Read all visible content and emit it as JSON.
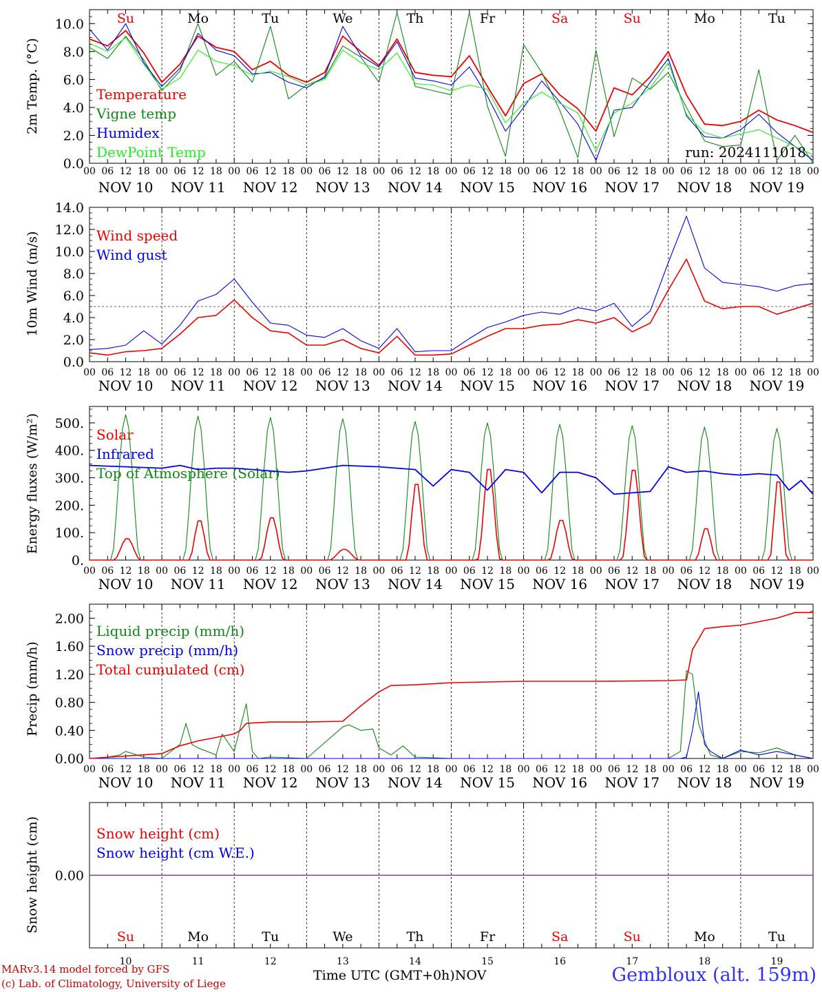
{
  "colors": {
    "red": "#ee0000",
    "green": "#118811",
    "blue": "#0000ee",
    "lightgreen": "#22ee22",
    "purple": "#7a3aa0",
    "station": "#3333ee"
  },
  "days": {
    "weekday_top": [
      "Su",
      "Mo",
      "Tu",
      "We",
      "Th",
      "Fr",
      "Sa",
      "Su",
      "Mo",
      "Tu"
    ],
    "weekday_red": [
      true,
      false,
      false,
      false,
      false,
      false,
      true,
      true,
      false,
      false
    ],
    "date_labels": [
      "NOV 10",
      "NOV 11",
      "NOV 12",
      "NOV 13",
      "NOV 14",
      "NOV 15",
      "NOV 16",
      "NOV 17",
      "NOV 18",
      "NOV 19"
    ],
    "day_numbers": [
      "10",
      "11",
      "12",
      "13",
      "14",
      "15",
      "16",
      "17",
      "18",
      "19"
    ],
    "hour_ticks": [
      "00",
      "06",
      "12",
      "18"
    ],
    "end_tick": "00"
  },
  "footer": {
    "credit_1": "MARv3.14 model forced by GFS",
    "credit_2": "(c) Lab. of Climatology, University of Liege",
    "x_caption": "Time UTC (GMT+0h)",
    "month": "NOV",
    "station": "Gembloux (alt. 159m)"
  },
  "chart_data": [
    {
      "type": "line",
      "ylabel": "2m Temp. (°C)",
      "ylim": [
        0,
        11
      ],
      "yticks": [
        "0.0",
        "2.0",
        "4.0",
        "6.0",
        "8.0",
        "10.0"
      ],
      "annotation": "run: 2024111018",
      "legend": [
        "Temperature",
        "Vigne temp",
        "Humidex",
        "DewPoint Temp"
      ],
      "x_hours": [
        0,
        6,
        12,
        18,
        24,
        30,
        36,
        42,
        48,
        54,
        60,
        66,
        72,
        78,
        84,
        90,
        96,
        102,
        108,
        114,
        120,
        126,
        132,
        138,
        144,
        150,
        156,
        162,
        168,
        174,
        180,
        186,
        192,
        198,
        204,
        210,
        216,
        222,
        228,
        234,
        240
      ],
      "series": [
        {
          "name": "Temperature",
          "color": "red",
          "values": [
            8.9,
            8.4,
            9.5,
            7.9,
            5.8,
            7.1,
            9.1,
            8.3,
            8.0,
            6.7,
            7.3,
            6.3,
            5.8,
            6.5,
            9.1,
            8.0,
            7.0,
            8.9,
            6.5,
            6.3,
            6.2,
            7.7,
            5.5,
            3.4,
            5.7,
            6.4,
            4.9,
            3.9,
            2.3,
            5.4,
            4.9,
            6.2,
            8.0,
            4.9,
            2.8,
            2.7,
            3.0,
            3.8,
            3.1,
            2.7,
            2.2
          ]
        },
        {
          "name": "Vigne temp",
          "color": "green",
          "values": [
            8.3,
            7.5,
            9.1,
            7.4,
            5.2,
            6.6,
            10.0,
            6.3,
            7.3,
            5.8,
            9.8,
            4.6,
            5.6,
            6.1,
            8.4,
            7.6,
            5.8,
            10.8,
            5.5,
            5.2,
            4.9,
            10.8,
            4.1,
            0.5,
            8.5,
            6.5,
            3.8,
            0.4,
            8.1,
            1.9,
            6.1,
            5.3,
            6.5,
            4.0,
            1.6,
            1.2,
            1.3,
            6.7,
            0.2,
            2.0,
            0.0
          ]
        },
        {
          "name": "Humidex",
          "color": "blue",
          "values": [
            9.6,
            8.1,
            10.0,
            7.2,
            5.5,
            6.8,
            9.3,
            8.1,
            7.7,
            6.4,
            6.5,
            5.8,
            5.4,
            6.2,
            9.8,
            7.7,
            6.9,
            8.7,
            6.1,
            5.9,
            5.6,
            6.9,
            4.8,
            2.3,
            4.0,
            5.9,
            4.4,
            2.8,
            0.2,
            3.8,
            4.0,
            5.8,
            7.5,
            3.4,
            1.9,
            1.8,
            2.4,
            3.5,
            2.2,
            1.2,
            0.2
          ]
        },
        {
          "name": "DewPoint Temp",
          "color": "lightgreen",
          "values": [
            8.6,
            8.0,
            9.0,
            7.1,
            5.3,
            6.1,
            8.1,
            7.3,
            7.0,
            6.3,
            6.6,
            6.2,
            5.6,
            6.0,
            8.1,
            7.2,
            6.7,
            7.9,
            5.7,
            5.6,
            5.2,
            5.6,
            5.3,
            2.9,
            4.3,
            5.1,
            4.3,
            3.6,
            0.9,
            3.6,
            4.3,
            5.4,
            7.2,
            3.5,
            2.2,
            1.8,
            2.1,
            2.4,
            1.8,
            1.2,
            0.6
          ]
        }
      ]
    },
    {
      "type": "line",
      "ylabel": "10m Wind (m/s)",
      "ylim": [
        0,
        14
      ],
      "yticks": [
        "0.0",
        "2.0",
        "4.0",
        "6.0",
        "8.0",
        "10.0",
        "12.0",
        "14.0"
      ],
      "reference_line": 5.0,
      "legend": [
        "Wind speed",
        "Wind gust"
      ],
      "x_hours": [
        0,
        6,
        12,
        18,
        24,
        30,
        36,
        42,
        48,
        54,
        60,
        66,
        72,
        78,
        84,
        90,
        96,
        102,
        108,
        114,
        120,
        126,
        132,
        138,
        144,
        150,
        156,
        162,
        168,
        174,
        180,
        186,
        192,
        198,
        204,
        210,
        216,
        222,
        228,
        234,
        240
      ],
      "series": [
        {
          "name": "Wind speed",
          "color": "red",
          "values": [
            0.8,
            0.6,
            0.9,
            1.0,
            1.2,
            2.5,
            4.0,
            4.2,
            5.6,
            4.0,
            2.8,
            2.6,
            1.5,
            1.5,
            2.0,
            1.2,
            0.8,
            2.3,
            0.6,
            0.6,
            0.7,
            1.5,
            2.3,
            3.0,
            3.0,
            3.3,
            3.4,
            3.8,
            3.5,
            4.0,
            2.7,
            3.5,
            6.5,
            9.3,
            5.5,
            4.8,
            5.0,
            5.0,
            4.3,
            4.8,
            5.3
          ]
        },
        {
          "name": "Wind gust",
          "color": "blue",
          "values": [
            1.1,
            1.2,
            1.5,
            2.8,
            1.6,
            3.3,
            5.5,
            6.1,
            7.5,
            5.4,
            3.5,
            3.3,
            2.4,
            2.2,
            3.0,
            1.9,
            1.2,
            3.0,
            0.9,
            1.0,
            1.0,
            2.1,
            3.1,
            3.6,
            4.2,
            4.5,
            4.3,
            4.9,
            4.6,
            5.3,
            3.2,
            4.6,
            9.0,
            13.2,
            8.5,
            7.2,
            7.0,
            6.8,
            6.4,
            6.9,
            7.1
          ]
        }
      ]
    },
    {
      "type": "line",
      "ylabel": "Energy fluxes (W/m²)",
      "ylim": [
        0,
        560
      ],
      "yticks": [
        "0.",
        "100.",
        "200.",
        "300.",
        "400.",
        "500."
      ],
      "legend": [
        "Solar",
        "Infrared",
        "Top of Atmosphere (Solar)"
      ],
      "solar_peaks": [
        {
          "day": 0,
          "peak": 80,
          "width": 4.5
        },
        {
          "day": 1,
          "peak": 150,
          "width": 3.5
        },
        {
          "day": 2,
          "peak": 160,
          "width": 4.0
        },
        {
          "day": 3,
          "peak": 40,
          "width": 5.0
        },
        {
          "day": 4,
          "peak": 290,
          "width": 3.5
        },
        {
          "day": 5,
          "peak": 345,
          "width": 3.8
        },
        {
          "day": 6,
          "peak": 150,
          "width": 4.0
        },
        {
          "day": 7,
          "peak": 340,
          "width": 4.0
        },
        {
          "day": 8,
          "peak": 120,
          "width": 3.5
        },
        {
          "day": 9,
          "peak": 305,
          "width": 3.0
        }
      ],
      "toa_peaks": [
        530,
        525,
        520,
        515,
        505,
        500,
        495,
        490,
        485,
        480
      ],
      "series": [
        {
          "name": "Infrared",
          "color": "blue",
          "x_hours": [
            0,
            12,
            24,
            30,
            36,
            42,
            48,
            54,
            60,
            66,
            72,
            84,
            96,
            102,
            108,
            114,
            120,
            126,
            132,
            138,
            144,
            150,
            156,
            162,
            168,
            174,
            180,
            186,
            192,
            198,
            204,
            210,
            216,
            222,
            228,
            232,
            236,
            240
          ],
          "values": [
            345,
            340,
            335,
            345,
            330,
            335,
            335,
            330,
            325,
            320,
            325,
            345,
            340,
            335,
            330,
            270,
            330,
            320,
            255,
            330,
            320,
            245,
            320,
            320,
            300,
            240,
            245,
            250,
            340,
            320,
            325,
            315,
            310,
            315,
            310,
            255,
            290,
            240
          ]
        }
      ]
    },
    {
      "type": "line",
      "ylabel": "Precip (mm/h)",
      "ylim": [
        0,
        2.2
      ],
      "yticks": [
        "0.00",
        "0.40",
        "0.80",
        "1.20",
        "1.60",
        "2.00"
      ],
      "legend": [
        "Liquid precip (mm/h)",
        "Snow precip (mm/h)",
        "Total cumulated (cm)"
      ],
      "series": [
        {
          "name": "Liquid precip (mm/h)",
          "color": "green",
          "x_hours": [
            0,
            6,
            10,
            12,
            18,
            24,
            30,
            32,
            34,
            36,
            42,
            44,
            48,
            52,
            54,
            56,
            60,
            72,
            84,
            86,
            90,
            94,
            96,
            100,
            104,
            108,
            120,
            192,
            196,
            198,
            200,
            202,
            204,
            206,
            210,
            216,
            222,
            228,
            234,
            240
          ],
          "values": [
            0,
            0.02,
            0.05,
            0.1,
            0.02,
            0,
            0.2,
            0.5,
            0.2,
            0.15,
            0.05,
            0.35,
            0.1,
            0.78,
            0.1,
            0,
            0.02,
            0,
            0.45,
            0.48,
            0.4,
            0.42,
            0.15,
            0.05,
            0.18,
            0.02,
            0,
            0,
            0.1,
            1.25,
            1.2,
            0.5,
            0.25,
            0.05,
            0,
            0.1,
            0.08,
            0.15,
            0.05,
            0
          ]
        },
        {
          "name": "Snow precip (mm/h)",
          "color": "blue",
          "x_hours": [
            0,
            192,
            196,
            198,
            200,
            202,
            204,
            206,
            210,
            216,
            222,
            228,
            234,
            240
          ],
          "values": [
            0,
            0,
            0,
            0.02,
            0.4,
            0.95,
            0.2,
            0.1,
            0,
            0.12,
            0.05,
            0.1,
            0.05,
            0
          ]
        },
        {
          "name": "Total cumulated (cm)",
          "color": "red",
          "x_hours": [
            0,
            24,
            30,
            36,
            42,
            48,
            50,
            52,
            60,
            72,
            84,
            90,
            96,
            100,
            108,
            120,
            144,
            168,
            192,
            198,
            200,
            204,
            210,
            216,
            222,
            228,
            234,
            240
          ],
          "values": [
            0,
            0.07,
            0.18,
            0.25,
            0.3,
            0.35,
            0.4,
            0.5,
            0.52,
            0.52,
            0.53,
            0.75,
            0.95,
            1.04,
            1.05,
            1.08,
            1.1,
            1.1,
            1.11,
            1.12,
            1.55,
            1.85,
            1.88,
            1.9,
            1.95,
            2.0,
            2.08,
            2.08
          ]
        }
      ]
    },
    {
      "type": "line",
      "ylabel": "Snow height (cm)",
      "ylim": [
        -1,
        1
      ],
      "yticks": [
        "0.00"
      ],
      "legend": [
        "Snow height (cm)",
        "Snow height (cm W.E.)"
      ],
      "series": [
        {
          "name": "Snow height (cm)",
          "color": "purple",
          "x_hours": [
            0,
            240
          ],
          "values": [
            0,
            0
          ]
        }
      ]
    }
  ]
}
